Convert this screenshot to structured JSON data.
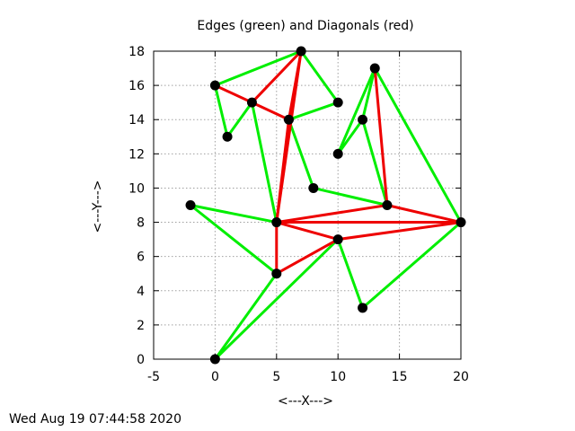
{
  "chart_data": {
    "type": "scatter",
    "title": "Edges (green) and Diagonals (red)",
    "xlabel": "<---X--->",
    "ylabel": "<---Y--->",
    "xlim": [
      -5,
      20
    ],
    "ylim": [
      0,
      18
    ],
    "x_ticks": [
      -5,
      0,
      5,
      10,
      15,
      20
    ],
    "y_ticks": [
      0,
      2,
      4,
      6,
      8,
      10,
      12,
      14,
      16,
      18
    ],
    "grid": true,
    "colors": {
      "edges": "#00ee00",
      "diagonals": "#ee0000",
      "vertices": "#000000"
    },
    "vertices": [
      [
        0,
        0
      ],
      [
        12,
        3
      ],
      [
        20,
        8
      ],
      [
        13,
        17
      ],
      [
        12,
        14
      ],
      [
        10,
        12
      ],
      [
        14,
        9
      ],
      [
        8,
        10
      ],
      [
        10,
        15
      ],
      [
        7,
        18
      ],
      [
        0,
        16
      ],
      [
        1,
        13
      ],
      [
        3,
        15
      ],
      [
        6,
        14
      ],
      [
        5,
        8
      ],
      [
        -2,
        9
      ],
      [
        5,
        5
      ],
      [
        10,
        7
      ]
    ],
    "edges": [
      [
        [
          0,
          0
        ],
        [
          10,
          7
        ]
      ],
      [
        [
          10,
          7
        ],
        [
          12,
          3
        ]
      ],
      [
        [
          12,
          3
        ],
        [
          20,
          8
        ]
      ],
      [
        [
          20,
          8
        ],
        [
          13,
          17
        ]
      ],
      [
        [
          13,
          17
        ],
        [
          12,
          14
        ]
      ],
      [
        [
          12,
          14
        ],
        [
          10,
          12
        ]
      ],
      [
        [
          10,
          12
        ],
        [
          13,
          17
        ]
      ],
      [
        [
          12,
          14
        ],
        [
          14,
          9
        ]
      ],
      [
        [
          14,
          9
        ],
        [
          8,
          10
        ]
      ],
      [
        [
          8,
          10
        ],
        [
          6,
          14
        ]
      ],
      [
        [
          6,
          14
        ],
        [
          10,
          15
        ]
      ],
      [
        [
          10,
          15
        ],
        [
          7,
          18
        ]
      ],
      [
        [
          7,
          18
        ],
        [
          0,
          16
        ]
      ],
      [
        [
          0,
          16
        ],
        [
          1,
          13
        ]
      ],
      [
        [
          1,
          13
        ],
        [
          3,
          15
        ]
      ],
      [
        [
          3,
          15
        ],
        [
          5,
          8
        ]
      ],
      [
        [
          5,
          8
        ],
        [
          -2,
          9
        ]
      ],
      [
        [
          -2,
          9
        ],
        [
          5,
          5
        ]
      ],
      [
        [
          5,
          5
        ],
        [
          0,
          0
        ]
      ]
    ],
    "diagonals": [
      [
        [
          0,
          16
        ],
        [
          3,
          15
        ]
      ],
      [
        [
          3,
          15
        ],
        [
          7,
          18
        ]
      ],
      [
        [
          3,
          15
        ],
        [
          6,
          14
        ]
      ],
      [
        [
          6,
          14
        ],
        [
          7,
          18
        ]
      ],
      [
        [
          7,
          18
        ],
        [
          5,
          8
        ]
      ],
      [
        [
          6,
          14
        ],
        [
          5,
          8
        ]
      ],
      [
        [
          5,
          8
        ],
        [
          14,
          9
        ]
      ],
      [
        [
          5,
          8
        ],
        [
          20,
          8
        ]
      ],
      [
        [
          14,
          9
        ],
        [
          20,
          8
        ]
      ],
      [
        [
          13,
          17
        ],
        [
          14,
          9
        ]
      ],
      [
        [
          5,
          8
        ],
        [
          10,
          7
        ]
      ],
      [
        [
          10,
          7
        ],
        [
          20,
          8
        ]
      ],
      [
        [
          5,
          8
        ],
        [
          5,
          5
        ]
      ],
      [
        [
          5,
          5
        ],
        [
          10,
          7
        ]
      ]
    ]
  },
  "timestamp": "Wed Aug 19 07:44:58 2020"
}
